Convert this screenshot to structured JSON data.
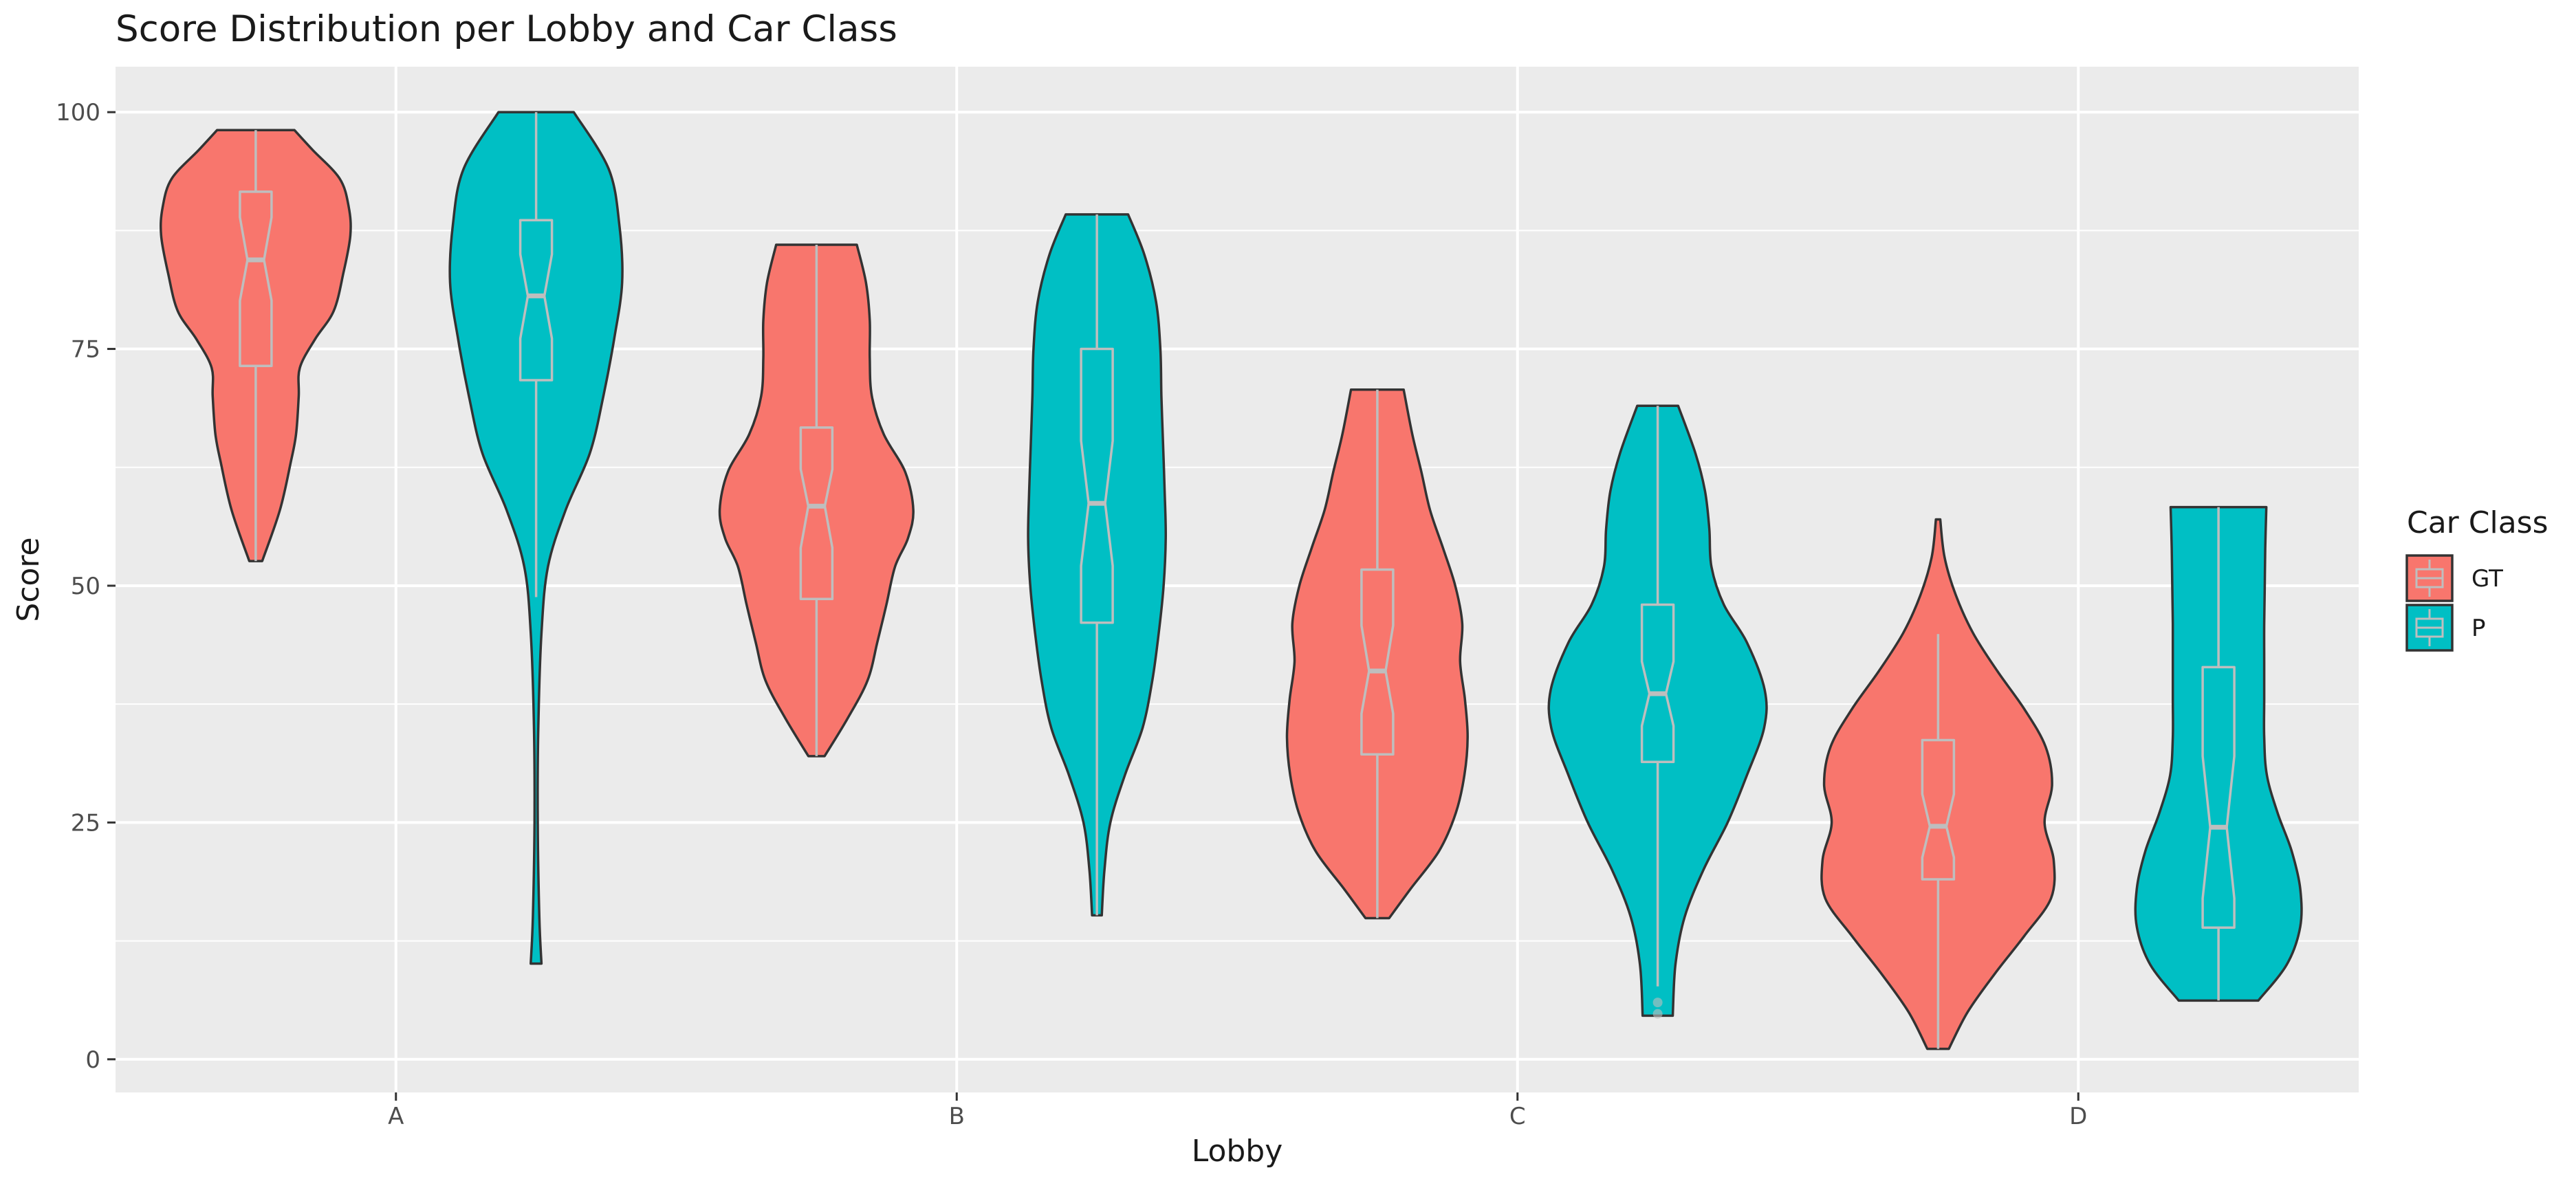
{
  "chart_data": {
    "type": "violin",
    "title": "Score Distribution per Lobby and Car Class",
    "xlabel": "Lobby",
    "ylabel": "Score",
    "categories": [
      "A",
      "B",
      "C",
      "D"
    ],
    "ylim": [
      -3.5,
      104.8
    ],
    "yticks": [
      0,
      25,
      50,
      75,
      100
    ],
    "legend": {
      "title": "Car Class",
      "position": "right"
    },
    "grid": true,
    "series": [
      {
        "name": "GT",
        "color": "#F8766D",
        "violins": [
          {
            "category": "A",
            "min": 52.6,
            "max": 98.1,
            "box": {
              "q1": 73.2,
              "median": 84.4,
              "q3": 91.6,
              "notch_low": 80.1,
              "notch_high": 88.9,
              "whisker_low": 52.6,
              "whisker_high": 98.1
            },
            "density": [
              [
                52.6,
                0.12
              ],
              [
                58,
                0.45
              ],
              [
                63,
                0.65
              ],
              [
                66,
                0.75
              ],
              [
                70,
                0.8
              ],
              [
                73,
                0.82
              ],
              [
                76,
                1.1
              ],
              [
                79,
                1.45
              ],
              [
                83,
                1.63
              ],
              [
                87,
                1.76
              ],
              [
                90,
                1.73
              ],
              [
                93,
                1.56
              ],
              [
                96,
                1.06
              ],
              [
                98.1,
                0.72
              ]
            ],
            "outliers": []
          },
          {
            "category": "B",
            "min": 32.0,
            "max": 86.0,
            "box": {
              "q1": 48.6,
              "median": 58.4,
              "q3": 66.7,
              "notch_low": 54.0,
              "notch_high": 62.3,
              "whisker_low": 32.0,
              "whisker_high": 86.0
            },
            "density": [
              [
                32.0,
                0.15
              ],
              [
                36,
                0.58
              ],
              [
                40,
                0.95
              ],
              [
                44,
                1.13
              ],
              [
                48,
                1.3
              ],
              [
                52,
                1.46
              ],
              [
                55,
                1.7
              ],
              [
                58,
                1.8
              ],
              [
                62,
                1.65
              ],
              [
                66,
                1.25
              ],
              [
                70,
                1.03
              ],
              [
                74,
                0.99
              ],
              [
                78,
                0.99
              ],
              [
                82,
                0.92
              ],
              [
                86.0,
                0.75
              ]
            ],
            "outliers": []
          },
          {
            "category": "C",
            "min": 14.9,
            "max": 70.7,
            "box": {
              "q1": 32.2,
              "median": 41.0,
              "q3": 51.7,
              "notch_low": 36.5,
              "notch_high": 45.8,
              "whisker_low": 14.9,
              "whisker_high": 70.7
            },
            "density": [
              [
                14.9,
                0.22
              ],
              [
                18,
                0.62
              ],
              [
                22,
                1.15
              ],
              [
                26,
                1.46
              ],
              [
                30,
                1.62
              ],
              [
                34,
                1.68
              ],
              [
                38,
                1.63
              ],
              [
                42,
                1.54
              ],
              [
                46,
                1.58
              ],
              [
                50,
                1.45
              ],
              [
                54,
                1.22
              ],
              [
                58,
                0.98
              ],
              [
                62,
                0.82
              ],
              [
                66,
                0.65
              ],
              [
                70.7,
                0.49
              ]
            ],
            "outliers": []
          },
          {
            "category": "D",
            "min": 1.1,
            "max": 57.0,
            "box": {
              "q1": 19.0,
              "median": 24.6,
              "q3": 33.7,
              "notch_low": 21.3,
              "notch_high": 28.0,
              "whisker_low": 1.1,
              "whisker_high": 44.9
            },
            "density": [
              [
                1.1,
                0.2
              ],
              [
                5,
                0.55
              ],
              [
                9,
                1.05
              ],
              [
                13,
                1.6
              ],
              [
                17,
                2.1
              ],
              [
                21,
                2.15
              ],
              [
                25,
                1.98
              ],
              [
                29,
                2.12
              ],
              [
                33,
                2.0
              ],
              [
                37,
                1.6
              ],
              [
                41,
                1.1
              ],
              [
                45,
                0.65
              ],
              [
                49,
                0.33
              ],
              [
                53,
                0.12
              ],
              [
                57.0,
                0.04
              ]
            ],
            "outliers": []
          }
        ]
      },
      {
        "name": "P",
        "color": "#00BFC4",
        "violins": [
          {
            "category": "A",
            "min": 10.1,
            "max": 100.0,
            "box": {
              "q1": 71.7,
              "median": 80.6,
              "q3": 88.6,
              "notch_low": 76.1,
              "notch_high": 85.0,
              "whisker_low": 48.8,
              "whisker_high": 100.0
            },
            "density": [
              [
                10.1,
                0.1
              ],
              [
                15,
                0.06
              ],
              [
                25,
                0.03
              ],
              [
                35,
                0.04
              ],
              [
                45,
                0.1
              ],
              [
                52,
                0.22
              ],
              [
                58,
                0.55
              ],
              [
                64,
                1.0
              ],
              [
                70,
                1.25
              ],
              [
                76,
                1.45
              ],
              [
                82,
                1.6
              ],
              [
                88,
                1.55
              ],
              [
                94,
                1.35
              ],
              [
                100.0,
                0.7
              ]
            ],
            "outliers": []
          },
          {
            "category": "B",
            "min": 15.2,
            "max": 89.2,
            "box": {
              "q1": 46.1,
              "median": 58.7,
              "q3": 75.0,
              "notch_low": 52.1,
              "notch_high": 65.3,
              "whisker_low": 15.2,
              "whisker_high": 89.2
            },
            "density": [
              [
                15.2,
                0.09
              ],
              [
                20,
                0.14
              ],
              [
                25,
                0.25
              ],
              [
                30,
                0.52
              ],
              [
                35,
                0.85
              ],
              [
                40,
                1.03
              ],
              [
                45,
                1.15
              ],
              [
                50,
                1.24
              ],
              [
                55,
                1.28
              ],
              [
                60,
                1.26
              ],
              [
                65,
                1.23
              ],
              [
                70,
                1.2
              ],
              [
                75,
                1.18
              ],
              [
                80,
                1.1
              ],
              [
                85,
                0.88
              ],
              [
                89.2,
                0.58
              ]
            ],
            "outliers": []
          },
          {
            "category": "C",
            "min": 4.6,
            "max": 69.0,
            "box": {
              "q1": 31.4,
              "median": 38.6,
              "q3": 48.0,
              "notch_low": 35.2,
              "notch_high": 42.0,
              "whisker_low": 7.7,
              "whisker_high": 69.0
            },
            "density": [
              [
                4.6,
                0.28
              ],
              [
                10,
                0.33
              ],
              [
                15,
                0.5
              ],
              [
                20,
                0.85
              ],
              [
                25,
                1.3
              ],
              [
                30,
                1.66
              ],
              [
                35,
                1.98
              ],
              [
                39,
                1.99
              ],
              [
                44,
                1.66
              ],
              [
                48,
                1.23
              ],
              [
                52,
                1.0
              ],
              [
                56,
                0.96
              ],
              [
                60,
                0.88
              ],
              [
                64,
                0.7
              ],
              [
                69.0,
                0.38
              ]
            ],
            "outliers": [
              {
                "y": 6.0
              },
              {
                "y": 4.8
              }
            ]
          },
          {
            "category": "D",
            "min": 6.2,
            "max": 58.3,
            "box": {
              "q1": 13.9,
              "median": 24.5,
              "q3": 41.4,
              "notch_low": 17.0,
              "notch_high": 32.0,
              "whisker_low": 6.2,
              "whisker_high": 58.3
            },
            "density": [
              [
                6.2,
                0.74
              ],
              [
                10,
                1.27
              ],
              [
                14,
                1.52
              ],
              [
                18,
                1.52
              ],
              [
                22,
                1.36
              ],
              [
                26,
                1.1
              ],
              [
                30,
                0.9
              ],
              [
                34,
                0.85
              ],
              [
                38,
                0.85
              ],
              [
                42,
                0.85
              ],
              [
                46,
                0.85
              ],
              [
                50,
                0.86
              ],
              [
                54,
                0.87
              ],
              [
                58.3,
                0.89
              ]
            ],
            "outliers": []
          }
        ]
      }
    ]
  }
}
